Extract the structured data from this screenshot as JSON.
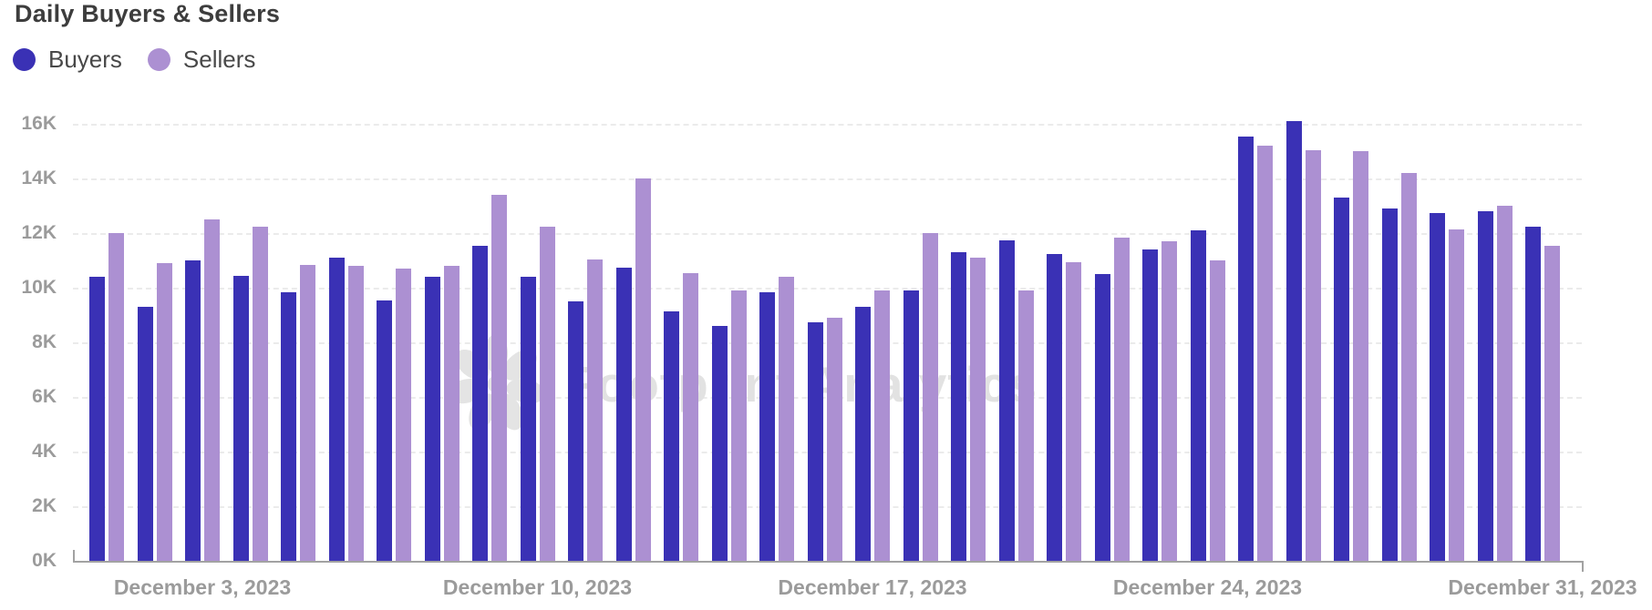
{
  "header": {
    "title": "Daily Buyers & Sellers"
  },
  "legend": {
    "items": [
      {
        "label": "Buyers",
        "color": "#3a31b5"
      },
      {
        "label": "Sellers",
        "color": "#ac90d2"
      }
    ]
  },
  "watermark": {
    "text": "Footprint Analytics"
  },
  "colors": {
    "buyers": "#3a31b5",
    "sellers": "#ac90d2",
    "grid": "#ebebeb",
    "axis": "#a2a2a2",
    "tick_text": "#9b9b9b",
    "title_text": "#3d3d3d"
  },
  "chart_data": {
    "type": "bar",
    "title": "Daily Buyers & Sellers",
    "categories": [
      "December 1, 2023",
      "December 2, 2023",
      "December 3, 2023",
      "December 4, 2023",
      "December 5, 2023",
      "December 6, 2023",
      "December 7, 2023",
      "December 8, 2023",
      "December 9, 2023",
      "December 10, 2023",
      "December 11, 2023",
      "December 12, 2023",
      "December 13, 2023",
      "December 14, 2023",
      "December 15, 2023",
      "December 16, 2023",
      "December 17, 2023",
      "December 18, 2023",
      "December 19, 2023",
      "December 20, 2023",
      "December 21, 2023",
      "December 22, 2023",
      "December 23, 2023",
      "December 24, 2023",
      "December 25, 2023",
      "December 26, 2023",
      "December 27, 2023",
      "December 28, 2023",
      "December 29, 2023",
      "December 30, 2023",
      "December 31, 2023"
    ],
    "series": [
      {
        "name": "Buyers",
        "color": "#3a31b5",
        "values": [
          10400,
          9300,
          11000,
          10450,
          9850,
          11100,
          9550,
          10400,
          11550,
          10400,
          9500,
          10750,
          9150,
          8600,
          9850,
          8750,
          9300,
          9900,
          11300,
          11750,
          11250,
          10500,
          11400,
          12100,
          15550,
          16100,
          13300,
          12900,
          12750,
          12800,
          12250
        ]
      },
      {
        "name": "Sellers",
        "color": "#ac90d2",
        "values": [
          12000,
          10900,
          12500,
          12250,
          10850,
          10800,
          10700,
          10800,
          13400,
          12250,
          11050,
          14000,
          10550,
          9900,
          10400,
          8900,
          9900,
          12000,
          11100,
          9900,
          10950,
          11850,
          11700,
          11000,
          15200,
          15050,
          15000,
          14200,
          12150,
          13000,
          11550
        ]
      }
    ],
    "xlabel": "",
    "ylabel": "",
    "ylim": [
      0,
      17200
    ],
    "y_ticks": [
      0,
      2000,
      4000,
      6000,
      8000,
      10000,
      12000,
      14000,
      16000
    ],
    "y_tick_labels": [
      "0K",
      "2K",
      "4K",
      "6K",
      "8K",
      "10K",
      "12K",
      "14K",
      "16K"
    ],
    "x_tick_labels": [
      "December 3, 2023",
      "December 10, 2023",
      "December 17, 2023",
      "December 24, 2023",
      "December 31, 2023"
    ],
    "x_tick_indices": [
      2,
      9,
      16,
      23,
      30
    ],
    "grid": true,
    "legend_position": "top-left"
  }
}
